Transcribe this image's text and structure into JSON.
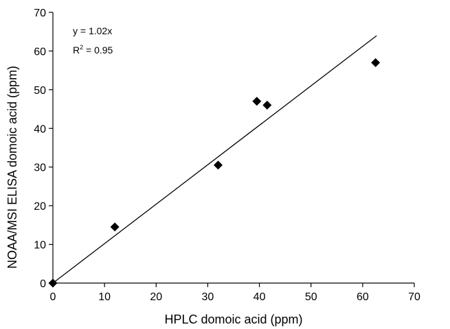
{
  "chart_data": {
    "type": "scatter",
    "title": "",
    "xlabel": "HPLC domoic acid (ppm)",
    "ylabel": "NOAA/MSI ELISA domoic acid (ppm)",
    "xlim": [
      0,
      70
    ],
    "ylim": [
      0,
      70
    ],
    "x_ticks": [
      0,
      10,
      20,
      30,
      40,
      50,
      60,
      70
    ],
    "y_ticks": [
      0,
      10,
      20,
      30,
      40,
      50,
      60,
      70
    ],
    "grid": false,
    "points": [
      {
        "x": 0,
        "y": 0
      },
      {
        "x": 12,
        "y": 14.5
      },
      {
        "x": 32,
        "y": 30.5
      },
      {
        "x": 39.5,
        "y": 47
      },
      {
        "x": 41.5,
        "y": 46
      },
      {
        "x": 62.5,
        "y": 57
      }
    ],
    "trendline": {
      "slope": 1.02,
      "intercept": 0,
      "x_start": 0,
      "x_end": 62.7
    },
    "annotations": {
      "equation": "y = 1.02x",
      "r2_base": "R",
      "r2_exp": "2",
      "r2_value": " = 0.95"
    },
    "colors": {
      "marker": "#000000",
      "line": "#000000"
    }
  }
}
